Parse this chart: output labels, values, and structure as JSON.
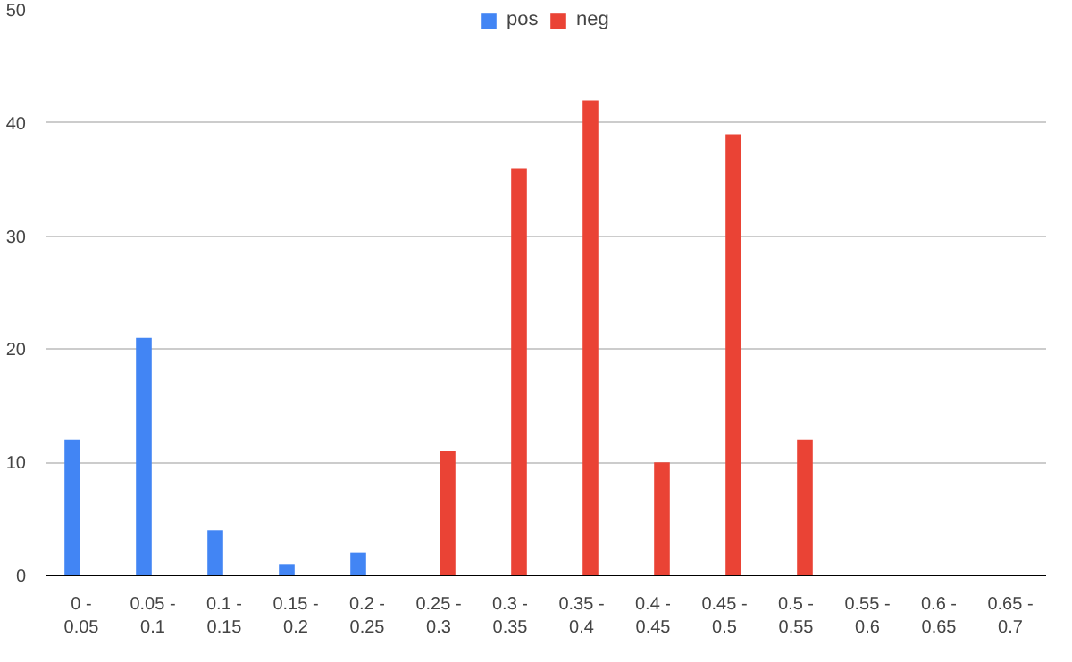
{
  "chart_data": {
    "type": "bar",
    "categories": [
      "0 - 0.05",
      "0.05 - 0.1",
      "0.1 - 0.15",
      "0.15 - 0.2",
      "0.2 - 0.25",
      "0.25 - 0.3",
      "0.3 - 0.35",
      "0.35 - 0.4",
      "0.4 - 0.45",
      "0.45 - 0.5",
      "0.5 - 0.55",
      "0.55 - 0.6",
      "0.6 - 0.65",
      "0.65 - 0.7"
    ],
    "series": [
      {
        "name": "pos",
        "color": "#4285f4",
        "values": [
          12,
          21,
          4,
          1,
          2,
          null,
          null,
          null,
          null,
          null,
          null,
          null,
          null,
          null
        ]
      },
      {
        "name": "neg",
        "color": "#ea4335",
        "values": [
          null,
          null,
          null,
          null,
          null,
          11,
          36,
          42,
          10,
          39,
          12,
          null,
          null,
          null
        ]
      }
    ],
    "ylim": [
      0,
      50
    ],
    "yticks": [
      0,
      10,
      20,
      30,
      40,
      50
    ],
    "grid": "y",
    "legend": "top"
  }
}
